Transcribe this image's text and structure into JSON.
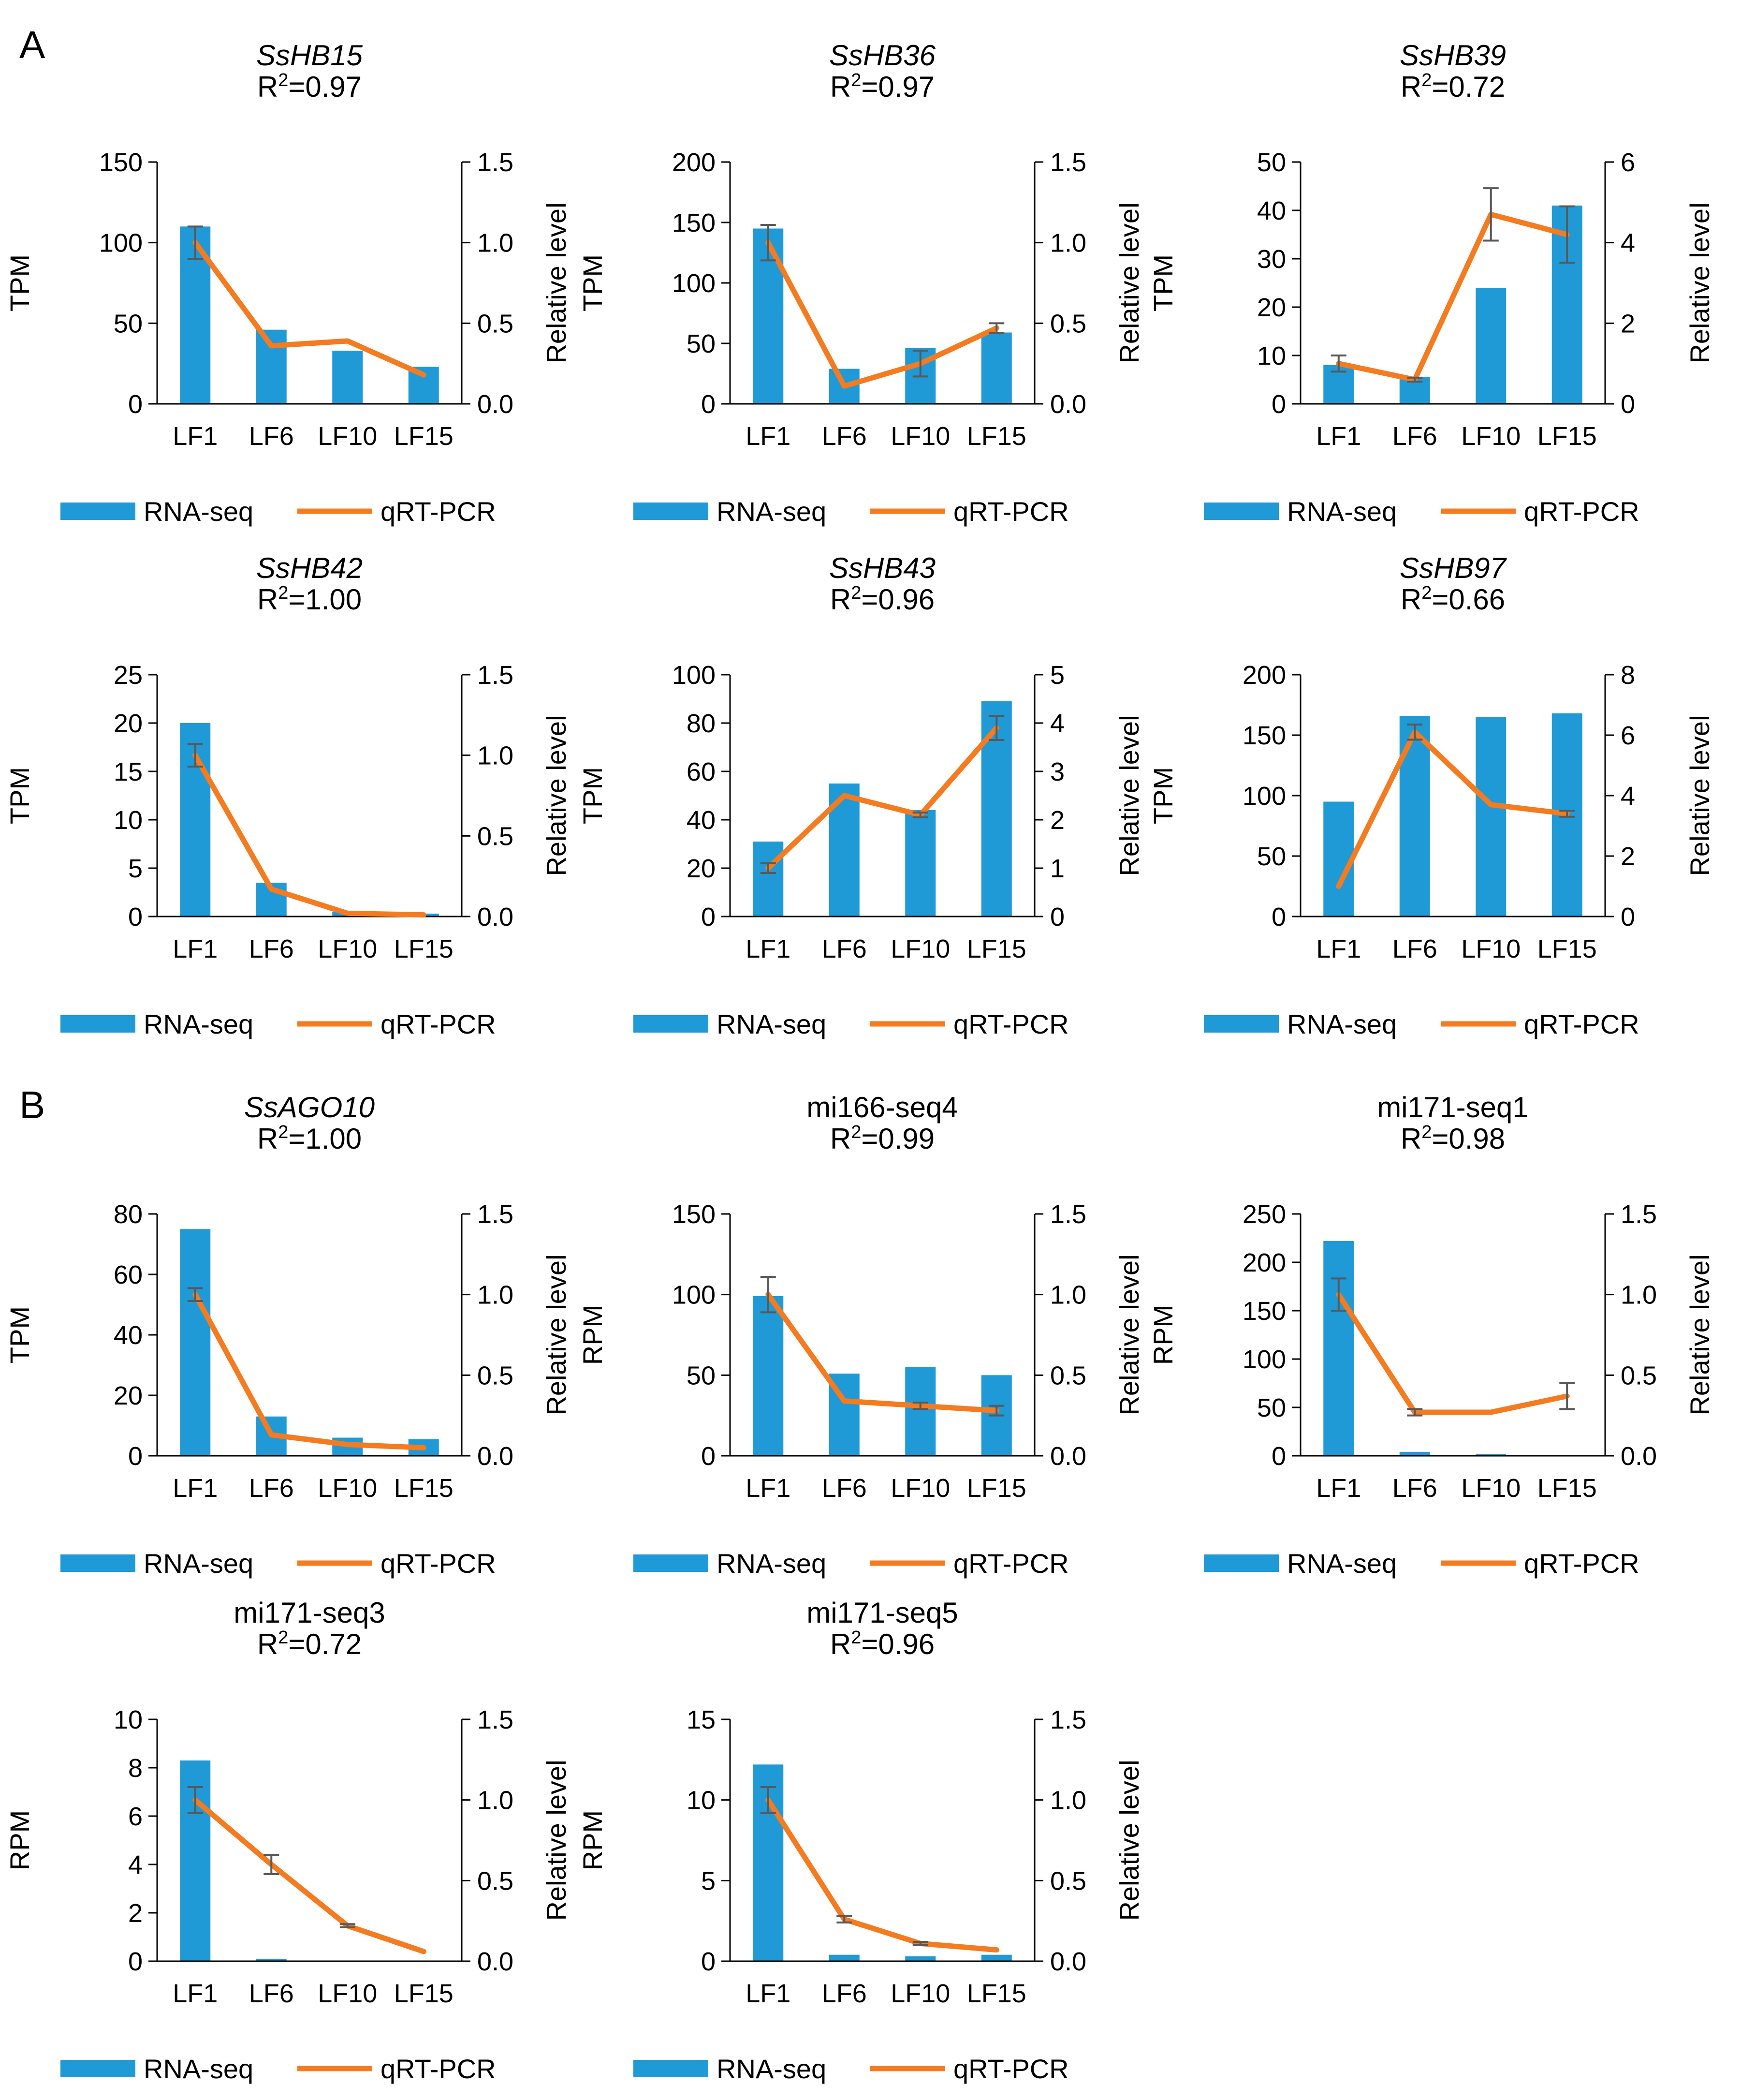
{
  "panels": [
    {
      "label": "A"
    },
    {
      "label": "B"
    }
  ],
  "colors": {
    "rna_seq_bar": "#1f9ad6",
    "qrt_pcr_line": "#f47b20",
    "error_bar": "#595959",
    "axis": "#000000"
  },
  "chart_data": [
    {
      "type": "bar",
      "panel": "A",
      "title": "SsHB15",
      "title_italic": true,
      "r2_value": "=0.97",
      "categories": [
        "LF1",
        "LF6",
        "LF10",
        "LF15"
      ],
      "ylabel": "TPM",
      "y2label": "Relative level",
      "ylim": [
        0,
        150
      ],
      "yticks": [
        "0",
        "50",
        "100",
        "150"
      ],
      "y2lim": [
        0,
        1.5
      ],
      "y2ticks": [
        "0.0",
        "0.5",
        "1.0",
        "1.5"
      ],
      "series": [
        {
          "name": "RNA-seq",
          "type": "bar",
          "axis": "left",
          "values": [
            110,
            46,
            33,
            23
          ]
        },
        {
          "name": "qRT-PCR",
          "type": "line",
          "axis": "right",
          "values": [
            1.0,
            0.36,
            0.39,
            0.18
          ],
          "errors": [
            0.1,
            0.0,
            0.0,
            0.0
          ]
        }
      ]
    },
    {
      "type": "bar",
      "panel": "A",
      "title": "SsHB36",
      "title_italic": true,
      "r2_value": "=0.97",
      "categories": [
        "LF1",
        "LF6",
        "LF10",
        "LF15"
      ],
      "ylabel": "TPM",
      "y2label": "Relative level",
      "ylim": [
        0,
        200
      ],
      "yticks": [
        "0",
        "50",
        "100",
        "150",
        "200"
      ],
      "y2lim": [
        0,
        1.5
      ],
      "y2ticks": [
        "0.0",
        "0.5",
        "1.0",
        "1.5"
      ],
      "series": [
        {
          "name": "RNA-seq",
          "type": "bar",
          "axis": "left",
          "values": [
            145,
            29,
            46,
            59
          ]
        },
        {
          "name": "qRT-PCR",
          "type": "line",
          "axis": "right",
          "values": [
            1.0,
            0.11,
            0.25,
            0.47
          ],
          "errors": [
            0.11,
            0.0,
            0.08,
            0.03
          ]
        }
      ]
    },
    {
      "type": "bar",
      "panel": "A",
      "title": "SsHB39",
      "title_italic": true,
      "r2_value": "=0.72",
      "categories": [
        "LF1",
        "LF6",
        "LF10",
        "LF15"
      ],
      "ylabel": "TPM",
      "y2label": "Relative level",
      "ylim": [
        0,
        50
      ],
      "yticks": [
        "0",
        "10",
        "20",
        "30",
        "40",
        "50"
      ],
      "y2lim": [
        0,
        6
      ],
      "y2ticks": [
        "0",
        "2",
        "4",
        "6"
      ],
      "series": [
        {
          "name": "RNA-seq",
          "type": "bar",
          "axis": "left",
          "values": [
            8,
            5.5,
            24,
            41
          ]
        },
        {
          "name": "qRT-PCR",
          "type": "line",
          "axis": "right",
          "values": [
            1.0,
            0.6,
            4.7,
            4.2
          ],
          "errors": [
            0.2,
            0.05,
            0.65,
            0.7
          ]
        }
      ]
    },
    {
      "type": "bar",
      "panel": "A",
      "title": "SsHB42",
      "title_italic": true,
      "r2_value": "=1.00",
      "categories": [
        "LF1",
        "LF6",
        "LF10",
        "LF15"
      ],
      "ylabel": "TPM",
      "y2label": "Relative level",
      "ylim": [
        0,
        25
      ],
      "yticks": [
        "0",
        "5",
        "10",
        "15",
        "20",
        "25"
      ],
      "y2lim": [
        0,
        1.5
      ],
      "y2ticks": [
        "0.0",
        "0.5",
        "1.0",
        "1.5"
      ],
      "series": [
        {
          "name": "RNA-seq",
          "type": "bar",
          "axis": "left",
          "values": [
            20,
            3.5,
            0.5,
            0.3
          ]
        },
        {
          "name": "qRT-PCR",
          "type": "line",
          "axis": "right",
          "values": [
            1.0,
            0.17,
            0.02,
            0.01
          ],
          "errors": [
            0.07,
            0.0,
            0.0,
            0.0
          ]
        }
      ]
    },
    {
      "type": "bar",
      "panel": "A",
      "title": "SsHB43",
      "title_italic": true,
      "r2_value": "=0.96",
      "categories": [
        "LF1",
        "LF6",
        "LF10",
        "LF15"
      ],
      "ylabel": "TPM",
      "y2label": "Relative level",
      "ylim": [
        0,
        100
      ],
      "yticks": [
        "0",
        "20",
        "40",
        "60",
        "80",
        "100"
      ],
      "y2lim": [
        0,
        5
      ],
      "y2ticks": [
        "0",
        "1",
        "2",
        "3",
        "4",
        "5"
      ],
      "series": [
        {
          "name": "RNA-seq",
          "type": "bar",
          "axis": "left",
          "values": [
            31,
            55,
            44,
            89
          ]
        },
        {
          "name": "qRT-PCR",
          "type": "line",
          "axis": "right",
          "values": [
            1.0,
            2.5,
            2.1,
            3.9
          ],
          "errors": [
            0.1,
            0.0,
            0.05,
            0.25
          ]
        }
      ]
    },
    {
      "type": "bar",
      "panel": "A",
      "title": "SsHB97",
      "title_italic": true,
      "r2_value": "=0.66",
      "categories": [
        "LF1",
        "LF6",
        "LF10",
        "LF15"
      ],
      "ylabel": "TPM",
      "y2label": "Relative level",
      "ylim": [
        0,
        200
      ],
      "yticks": [
        "0",
        "50",
        "100",
        "150",
        "200"
      ],
      "y2lim": [
        0,
        8
      ],
      "y2ticks": [
        "0",
        "2",
        "4",
        "6",
        "8"
      ],
      "series": [
        {
          "name": "RNA-seq",
          "type": "bar",
          "axis": "left",
          "values": [
            95,
            166,
            165,
            168
          ]
        },
        {
          "name": "qRT-PCR",
          "type": "line",
          "axis": "right",
          "values": [
            1.0,
            6.1,
            3.7,
            3.4
          ],
          "errors": [
            0.0,
            0.25,
            0.0,
            0.1
          ]
        }
      ]
    },
    {
      "type": "bar",
      "panel": "B",
      "title": "SsAGO10",
      "title_italic": true,
      "r2_value": "=1.00",
      "categories": [
        "LF1",
        "LF6",
        "LF10",
        "LF15"
      ],
      "ylabel": "TPM",
      "y2label": "Relative level",
      "ylim": [
        0,
        80
      ],
      "yticks": [
        "0",
        "20",
        "40",
        "60",
        "80"
      ],
      "y2lim": [
        0,
        1.5
      ],
      "y2ticks": [
        "0.0",
        "0.5",
        "1.0",
        "1.5"
      ],
      "series": [
        {
          "name": "RNA-seq",
          "type": "bar",
          "axis": "left",
          "values": [
            75,
            13,
            6,
            5.5
          ]
        },
        {
          "name": "qRT-PCR",
          "type": "line",
          "axis": "right",
          "values": [
            1.0,
            0.13,
            0.07,
            0.05
          ],
          "errors": [
            0.04,
            0.0,
            0.0,
            0.0
          ]
        }
      ]
    },
    {
      "type": "bar",
      "panel": "B",
      "title": "mi166-seq4",
      "title_italic": false,
      "r2_value": "=0.99",
      "categories": [
        "LF1",
        "LF6",
        "LF10",
        "LF15"
      ],
      "ylabel": "RPM",
      "y2label": "Relative level",
      "ylim": [
        0,
        150
      ],
      "yticks": [
        "0",
        "50",
        "100",
        "150"
      ],
      "y2lim": [
        0,
        1.5
      ],
      "y2ticks": [
        "0.0",
        "0.5",
        "1.0",
        "1.5"
      ],
      "series": [
        {
          "name": "RNA-seq",
          "type": "bar",
          "axis": "left",
          "values": [
            99,
            51,
            55,
            50
          ]
        },
        {
          "name": "qRT-PCR",
          "type": "line",
          "axis": "right",
          "values": [
            1.0,
            0.34,
            0.31,
            0.28
          ],
          "errors": [
            0.11,
            0.0,
            0.02,
            0.03
          ]
        }
      ]
    },
    {
      "type": "bar",
      "panel": "B",
      "title": "mi171-seq1",
      "title_italic": false,
      "r2_value": "=0.98",
      "categories": [
        "LF1",
        "LF6",
        "LF10",
        "LF15"
      ],
      "ylabel": "RPM",
      "y2label": "Relative level",
      "ylim": [
        0,
        250
      ],
      "yticks": [
        "0",
        "50",
        "100",
        "150",
        "200",
        "250"
      ],
      "y2lim": [
        0,
        1.5
      ],
      "y2ticks": [
        "0.0",
        "0.5",
        "1.0",
        "1.5"
      ],
      "series": [
        {
          "name": "RNA-seq",
          "type": "bar",
          "axis": "left",
          "values": [
            222,
            4,
            2,
            0
          ]
        },
        {
          "name": "qRT-PCR",
          "type": "line",
          "axis": "right",
          "values": [
            1.0,
            0.27,
            0.27,
            0.37
          ],
          "errors": [
            0.1,
            0.02,
            0.0,
            0.08
          ]
        }
      ]
    },
    {
      "type": "bar",
      "panel": "B",
      "title": "mi171-seq3",
      "title_italic": false,
      "r2_value": "=0.72",
      "categories": [
        "LF1",
        "LF6",
        "LF10",
        "LF15"
      ],
      "ylabel": "RPM",
      "y2label": "Relative level",
      "ylim": [
        0,
        10
      ],
      "yticks": [
        "0",
        "2",
        "4",
        "6",
        "8",
        "10"
      ],
      "y2lim": [
        0,
        1.5
      ],
      "y2ticks": [
        "0.0",
        "0.5",
        "1.0",
        "1.5"
      ],
      "series": [
        {
          "name": "RNA-seq",
          "type": "bar",
          "axis": "left",
          "values": [
            8.3,
            0.1,
            0.0,
            0.0
          ]
        },
        {
          "name": "qRT-PCR",
          "type": "line",
          "axis": "right",
          "values": [
            1.0,
            0.6,
            0.22,
            0.06
          ],
          "errors": [
            0.08,
            0.06,
            0.01,
            0.0
          ]
        }
      ]
    },
    {
      "type": "bar",
      "panel": "B",
      "title": "mi171-seq5",
      "title_italic": false,
      "r2_value": "=0.96",
      "categories": [
        "LF1",
        "LF6",
        "LF10",
        "LF15"
      ],
      "ylabel": "RPM",
      "y2label": "Relative level",
      "ylim": [
        0,
        15
      ],
      "yticks": [
        "0",
        "5",
        "10",
        "15"
      ],
      "y2lim": [
        0,
        1.5
      ],
      "y2ticks": [
        "0.0",
        "0.5",
        "1.0",
        "1.5"
      ],
      "series": [
        {
          "name": "RNA-seq",
          "type": "bar",
          "axis": "left",
          "values": [
            12.2,
            0.4,
            0.3,
            0.4
          ]
        },
        {
          "name": "qRT-PCR",
          "type": "line",
          "axis": "right",
          "values": [
            1.0,
            0.26,
            0.11,
            0.07
          ],
          "errors": [
            0.08,
            0.02,
            0.01,
            0.0
          ]
        }
      ]
    }
  ]
}
